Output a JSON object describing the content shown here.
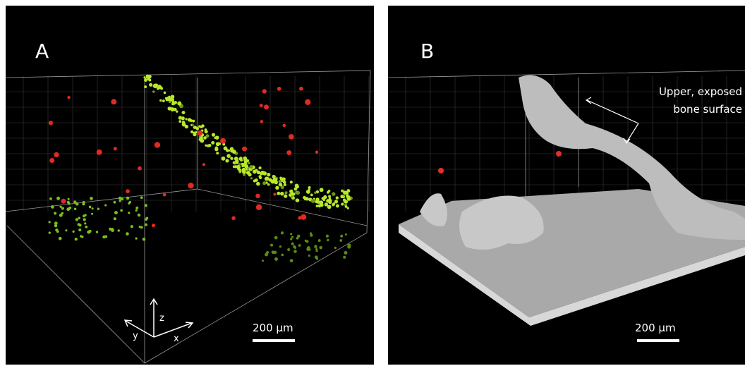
{
  "panels": [
    {
      "label": "A",
      "scale_bar": "200 µm",
      "axes": {
        "z": "z",
        "y": "y",
        "x": "x"
      }
    },
    {
      "label": "B",
      "scale_bar": "200 µm",
      "annotation": [
        "Upper, exposed",
        "bone surface"
      ]
    }
  ]
}
